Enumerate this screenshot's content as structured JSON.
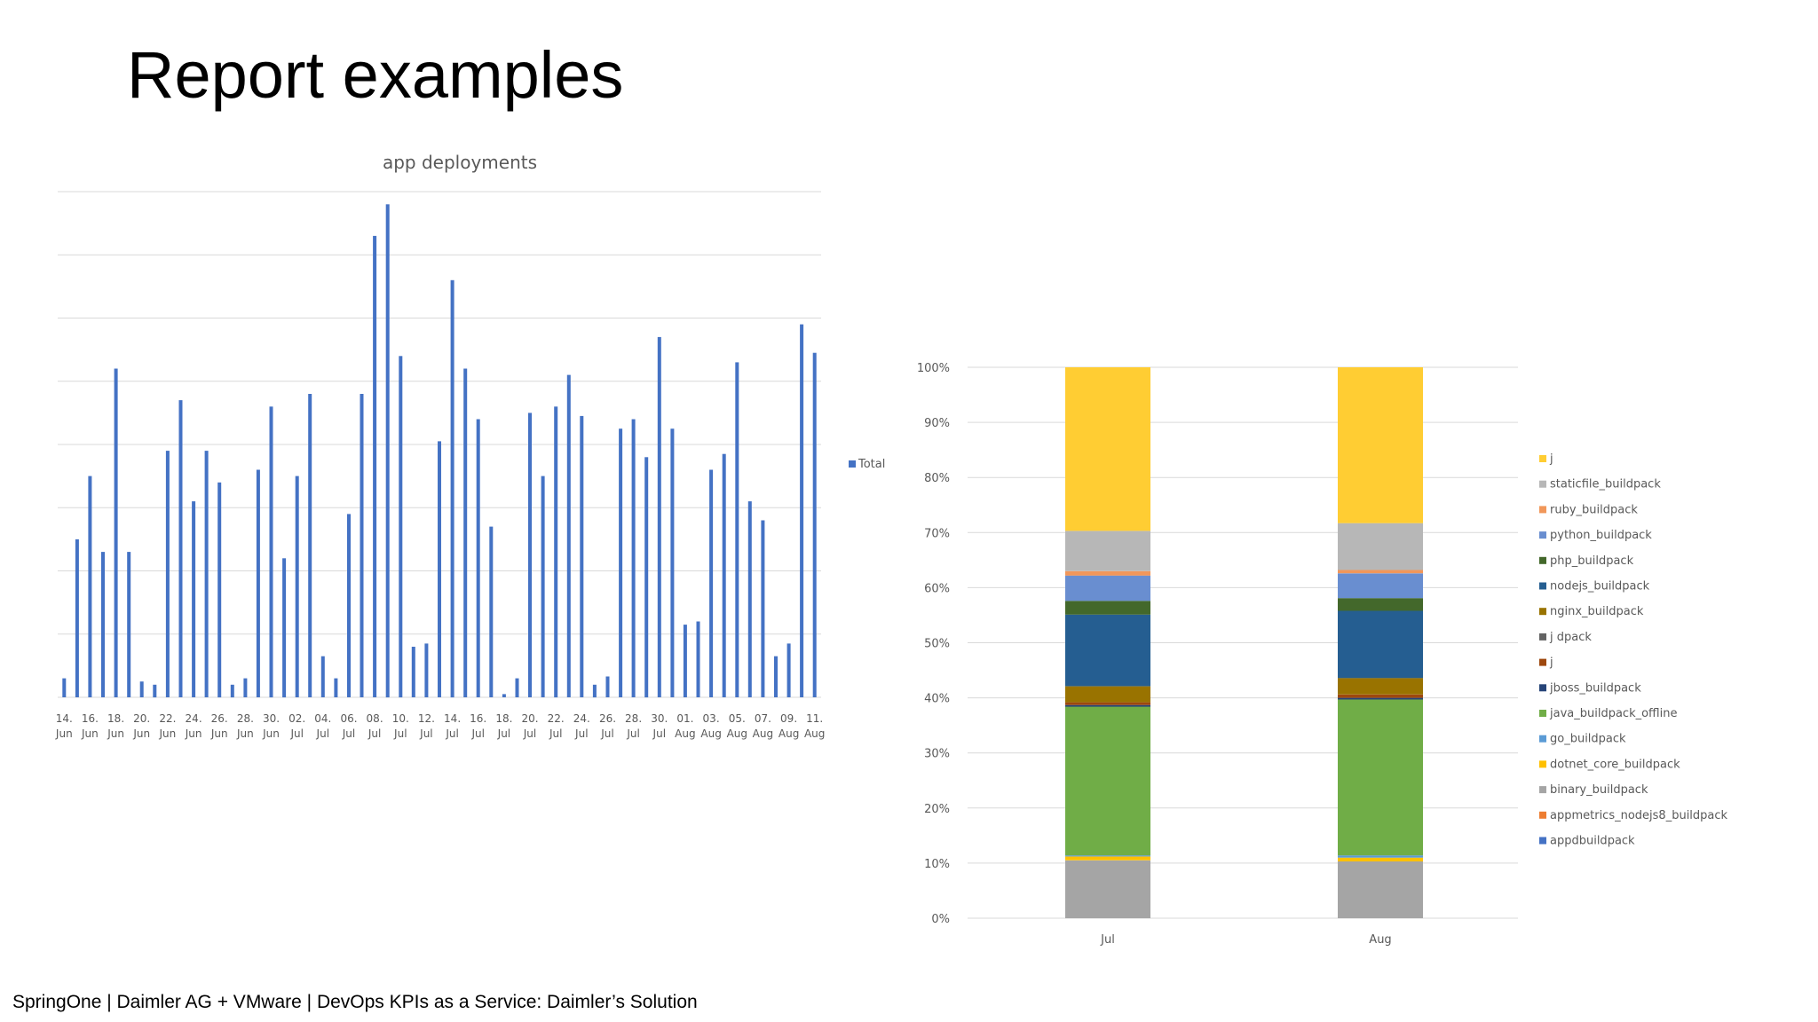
{
  "slide": {
    "title": "Report examples",
    "footer": "SpringOne |  Daimler AG + VMware  |  DevOps KPIs as a Service: Daimler’s Solution"
  },
  "colors": {
    "bar_blue": "#4472c4",
    "grid": "#d9d9d9",
    "axis_text": "#595959"
  },
  "chart_data": [
    {
      "type": "bar",
      "title": "app deployments",
      "xlabel": "",
      "ylabel": "",
      "ylim": [
        0,
        80
      ],
      "grid": true,
      "legend_position": "right",
      "series": [
        {
          "name": "Total",
          "color": "#4472c4",
          "values": [
            3,
            25,
            35,
            23,
            52,
            23,
            2.5,
            2,
            39,
            47,
            31,
            39,
            34,
            2,
            3,
            36,
            46,
            22,
            35,
            48,
            6.5,
            3,
            29,
            48,
            73,
            78,
            54,
            8,
            8.5,
            40.5,
            66,
            52,
            44,
            27,
            0.5,
            3,
            45,
            35,
            46,
            51,
            44.5,
            2,
            3.3,
            42.5,
            44,
            38,
            57,
            42.5,
            11.5,
            12,
            36,
            38.5,
            53,
            31,
            28,
            6.5,
            8.5,
            59,
            54.5
          ]
        }
      ],
      "x": [
        "14. Jun",
        "",
        "16. Jun",
        "",
        "18. Jun",
        "",
        "20. Jun",
        "",
        "22. Jun",
        "",
        "24. Jun",
        "",
        "26. Jun",
        "",
        "28. Jun",
        "",
        "30. Jun",
        "",
        "02. Jul",
        "",
        "04. Jul",
        "",
        "06. Jul",
        "",
        "08. Jul",
        "",
        "10. Jul",
        "",
        "12. Jul",
        "",
        "14. Jul",
        "",
        "16. Jul",
        "",
        "18. Jul",
        "",
        "20. Jul",
        "",
        "22. Jul",
        "",
        "24. Jul",
        "",
        "26. Jul",
        "",
        "28. Jul",
        "",
        "30. Jul",
        "",
        "01. Aug",
        "",
        "03. Aug",
        "",
        "05. Aug",
        "",
        "07. Aug",
        "",
        "09. Aug",
        "",
        "11. Aug"
      ],
      "tick_labels": [
        {
          "day": "14.",
          "month": "Jun"
        },
        {
          "day": "16.",
          "month": "Jun"
        },
        {
          "day": "18.",
          "month": "Jun"
        },
        {
          "day": "20.",
          "month": "Jun"
        },
        {
          "day": "22.",
          "month": "Jun"
        },
        {
          "day": "24.",
          "month": "Jun"
        },
        {
          "day": "26.",
          "month": "Jun"
        },
        {
          "day": "28.",
          "month": "Jun"
        },
        {
          "day": "30.",
          "month": "Jun"
        },
        {
          "day": "02.",
          "month": "Jul"
        },
        {
          "day": "04.",
          "month": "Jul"
        },
        {
          "day": "06.",
          "month": "Jul"
        },
        {
          "day": "08.",
          "month": "Jul"
        },
        {
          "day": "10.",
          "month": "Jul"
        },
        {
          "day": "12.",
          "month": "Jul"
        },
        {
          "day": "14.",
          "month": "Jul"
        },
        {
          "day": "16.",
          "month": "Jul"
        },
        {
          "day": "18.",
          "month": "Jul"
        },
        {
          "day": "20.",
          "month": "Jul"
        },
        {
          "day": "22.",
          "month": "Jul"
        },
        {
          "day": "24.",
          "month": "Jul"
        },
        {
          "day": "26.",
          "month": "Jul"
        },
        {
          "day": "28.",
          "month": "Jul"
        },
        {
          "day": "30.",
          "month": "Jul"
        },
        {
          "day": "01.",
          "month": "Aug"
        },
        {
          "day": "03.",
          "month": "Aug"
        },
        {
          "day": "05.",
          "month": "Aug"
        },
        {
          "day": "07.",
          "month": "Aug"
        },
        {
          "day": "09.",
          "month": "Aug"
        },
        {
          "day": "11.",
          "month": "Aug"
        }
      ]
    },
    {
      "type": "bar",
      "stacked": "percent",
      "title": "",
      "xlabel": "",
      "ylabel": "",
      "ylim": [
        0,
        100
      ],
      "grid": true,
      "legend_position": "right",
      "categories": [
        "Jul",
        "Aug"
      ],
      "y_ticks": [
        "0%",
        "10%",
        "20%",
        "30%",
        "40%",
        "50%",
        "60%",
        "70%",
        "80%",
        "90%",
        "100%"
      ],
      "series": [
        {
          "name": "appdbuildpack",
          "color": "#4472c4",
          "values": [
            0,
            0
          ]
        },
        {
          "name": "appmetrics_nodejs8_buildpack",
          "color": "#ed7d31",
          "values": [
            0,
            0
          ]
        },
        {
          "name": "binary_buildpack",
          "color": "#a5a5a5",
          "values": [
            10.5,
            10.3
          ]
        },
        {
          "name": "dotnet_core_buildpack",
          "color": "#ffc000",
          "values": [
            0.7,
            0.7
          ]
        },
        {
          "name": "go_buildpack",
          "color": "#5b9bd5",
          "values": [
            0.2,
            0.4
          ]
        },
        {
          "name": "java_buildpack_offline",
          "color": "#70ad47",
          "values": [
            27,
            28.3
          ]
        },
        {
          "name": "jboss_buildpack",
          "color": "#264478",
          "values": [
            0.3,
            0.3
          ]
        },
        {
          "name": "j",
          "color": "#9e480e",
          "values": [
            0.5,
            0.6
          ]
        },
        {
          "name": "j                                   dpack",
          "color": "#636363",
          "values": [
            0,
            0
          ]
        },
        {
          "name": "nginx_buildpack",
          "color": "#997300",
          "values": [
            2.9,
            3
          ]
        },
        {
          "name": "nodejs_buildpack",
          "color": "#255e91",
          "values": [
            13,
            12.2
          ]
        },
        {
          "name": "php_buildpack",
          "color": "#43682b",
          "values": [
            2.5,
            2.3
          ]
        },
        {
          "name": "python_buildpack",
          "color": "#698ed0",
          "values": [
            4.6,
            4.5
          ]
        },
        {
          "name": "ruby_buildpack",
          "color": "#f1975a",
          "values": [
            0.8,
            0.6
          ]
        },
        {
          "name": "staticfile_buildpack",
          "color": "#b7b7b7",
          "values": [
            7.3,
            8.5
          ]
        },
        {
          "name": "j",
          "color": "#ffcd33",
          "values": [
            29.7,
            28.3
          ]
        }
      ]
    }
  ]
}
